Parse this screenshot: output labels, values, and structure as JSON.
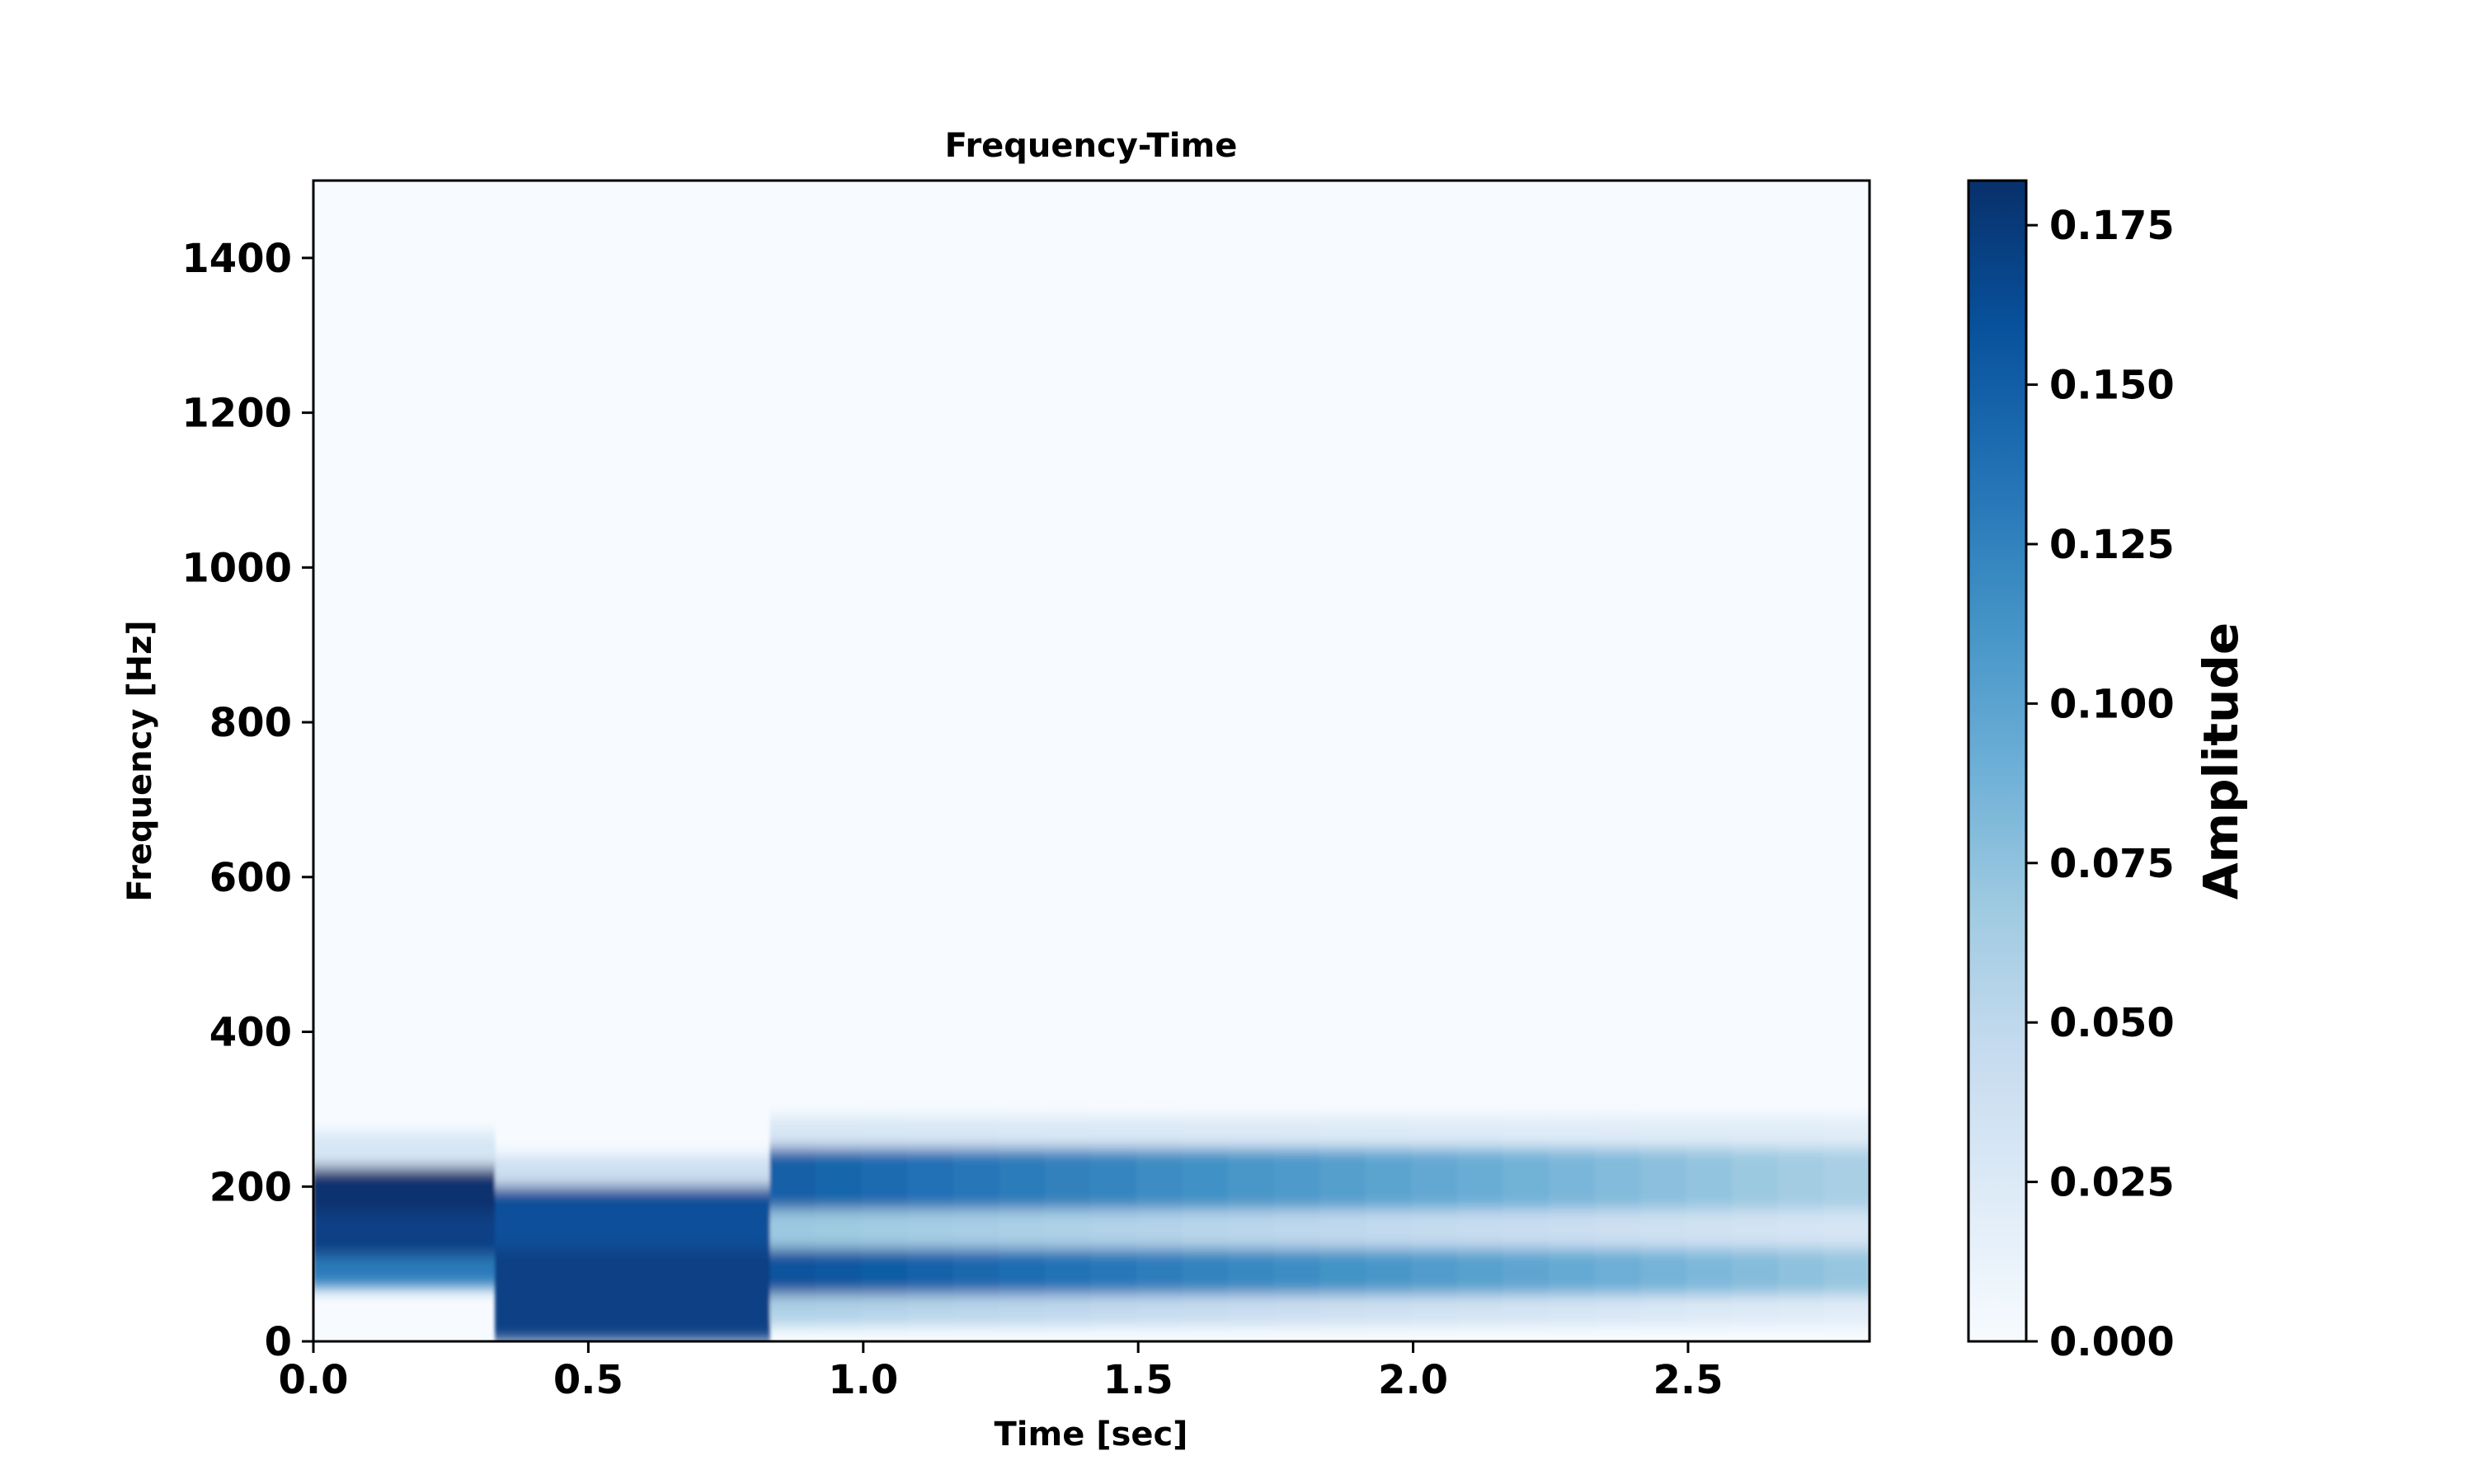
{
  "chart_data": {
    "type": "heatmap",
    "title": "Frequency-Time",
    "xlabel": "Time [sec]",
    "ylabel": "Frequency [Hz]",
    "xlim": [
      0,
      2.83
    ],
    "ylim": [
      0,
      1500
    ],
    "x_ticks": [
      0.0,
      0.5,
      1.0,
      1.5,
      2.0,
      2.5
    ],
    "x_tick_labels": [
      "0.0",
      "0.5",
      "1.0",
      "1.5",
      "2.0",
      "2.5"
    ],
    "y_ticks": [
      0,
      200,
      400,
      600,
      800,
      1000,
      1200,
      1400
    ],
    "y_tick_labels": [
      "0",
      "200",
      "400",
      "600",
      "800",
      "1000",
      "1200",
      "1400"
    ],
    "colorbar": {
      "label": "Amplitude",
      "colormap": "Blues",
      "range": [
        0,
        0.182
      ],
      "ticks": [
        0.0,
        0.025,
        0.05,
        0.075,
        0.1,
        0.125,
        0.15,
        0.175
      ],
      "tick_labels": [
        "0.000",
        "0.025",
        "0.050",
        "0.075",
        "0.100",
        "0.125",
        "0.150",
        "0.175"
      ]
    },
    "segments": [
      {
        "time": [
          0.0,
          0.33
        ],
        "bands": [
          {
            "freq": [
              165,
              225
            ],
            "amplitude": 0.18
          },
          {
            "freq": [
              110,
              165
            ],
            "amplitude": 0.17
          },
          {
            "freq": [
              70,
              110
            ],
            "amplitude": 0.13
          },
          {
            "freq": [
              225,
              270
            ],
            "amplitude": 0.03
          }
        ]
      },
      {
        "time": [
          0.33,
          0.83
        ],
        "bands": [
          {
            "freq": [
              120,
              200
            ],
            "amplitude": 0.16
          },
          {
            "freq": [
              0,
              120
            ],
            "amplitude": 0.17
          },
          {
            "freq": [
              200,
              240
            ],
            "amplitude": 0.04
          }
        ]
      },
      {
        "time": [
          0.83,
          2.83
        ],
        "bands": [
          {
            "freq": [
              170,
              250
            ],
            "amplitude_start": 0.15,
            "amplitude_end": 0.06
          },
          {
            "freq": [
              60,
              120
            ],
            "amplitude_start": 0.16,
            "amplitude_end": 0.07
          },
          {
            "freq": [
              120,
              170
            ],
            "amplitude_start": 0.07,
            "amplitude_end": 0.03
          },
          {
            "freq": [
              250,
              290
            ],
            "amplitude_start": 0.03,
            "amplitude_end": 0.02
          },
          {
            "freq": [
              20,
              60
            ],
            "amplitude_start": 0.06,
            "amplitude_end": 0.02
          }
        ]
      }
    ]
  }
}
